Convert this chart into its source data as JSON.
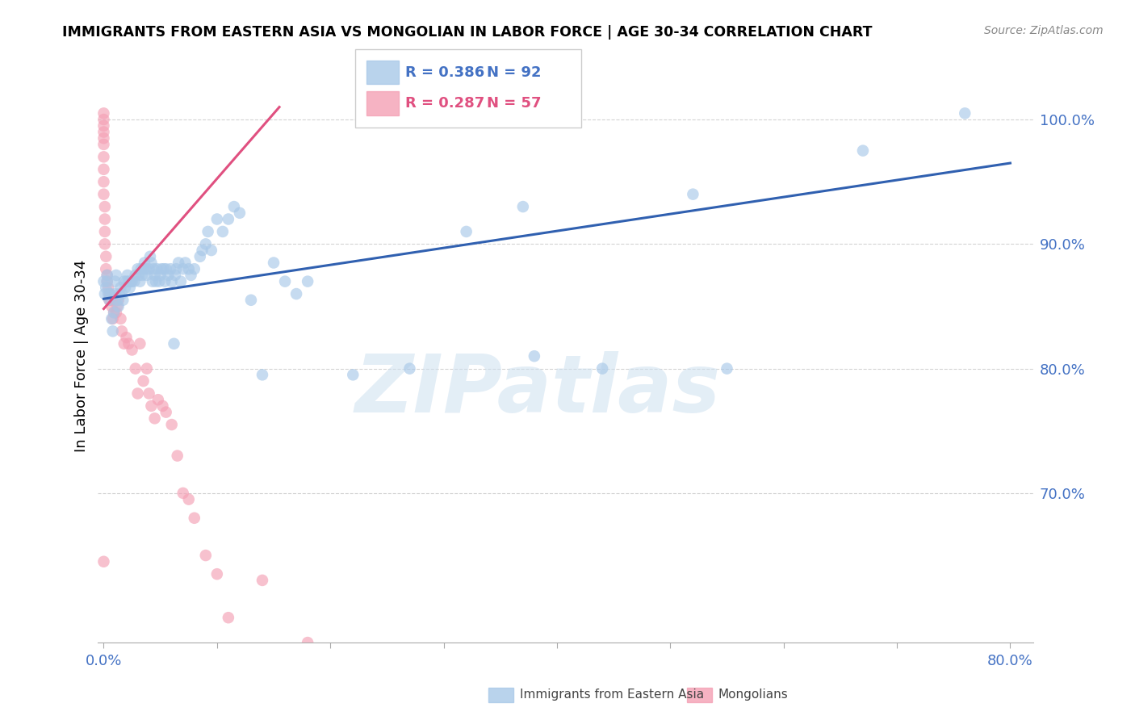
{
  "title": "IMMIGRANTS FROM EASTERN ASIA VS MONGOLIAN IN LABOR FORCE | AGE 30-34 CORRELATION CHART",
  "source": "Source: ZipAtlas.com",
  "ylabel": "In Labor Force | Age 30-34",
  "watermark": "ZIPatlas",
  "xlim": [
    -0.005,
    0.82
  ],
  "ylim": [
    0.58,
    1.04
  ],
  "yticks": [
    0.7,
    0.8,
    0.9,
    1.0
  ],
  "ytick_labels": [
    "70.0%",
    "80.0%",
    "90.0%",
    "100.0%"
  ],
  "xticks": [
    0.0,
    0.1,
    0.2,
    0.3,
    0.4,
    0.5,
    0.6,
    0.7,
    0.8
  ],
  "xtick_labels": [
    "0.0%",
    "",
    "",
    "",
    "",
    "",
    "",
    "",
    "80.0%"
  ],
  "blue_R": 0.386,
  "blue_N": 92,
  "pink_R": 0.287,
  "pink_N": 57,
  "blue_color": "#a8c8e8",
  "pink_color": "#f4a0b5",
  "blue_line_color": "#3060b0",
  "pink_line_color": "#e05080",
  "axis_color": "#4472c4",
  "grid_color": "#c8c8c8",
  "blue_scatter_x": [
    0.0,
    0.001,
    0.002,
    0.003,
    0.003,
    0.004,
    0.005,
    0.006,
    0.007,
    0.008,
    0.009,
    0.01,
    0.01,
    0.011,
    0.012,
    0.013,
    0.014,
    0.015,
    0.016,
    0.017,
    0.018,
    0.019,
    0.02,
    0.021,
    0.022,
    0.023,
    0.024,
    0.025,
    0.027,
    0.028,
    0.03,
    0.031,
    0.032,
    0.033,
    0.034,
    0.035,
    0.036,
    0.037,
    0.038,
    0.04,
    0.041,
    0.042,
    0.043,
    0.044,
    0.045,
    0.046,
    0.047,
    0.049,
    0.05,
    0.051,
    0.053,
    0.054,
    0.055,
    0.057,
    0.059,
    0.06,
    0.062,
    0.063,
    0.064,
    0.066,
    0.068,
    0.07,
    0.072,
    0.075,
    0.077,
    0.08,
    0.085,
    0.087,
    0.09,
    0.092,
    0.095,
    0.1,
    0.105,
    0.11,
    0.115,
    0.12,
    0.13,
    0.14,
    0.15,
    0.16,
    0.17,
    0.18,
    0.22,
    0.27,
    0.32,
    0.37,
    0.44,
    0.52,
    0.67,
    0.76,
    0.38,
    0.55
  ],
  "blue_scatter_y": [
    0.87,
    0.86,
    0.865,
    0.875,
    0.87,
    0.86,
    0.855,
    0.86,
    0.84,
    0.83,
    0.845,
    0.87,
    0.86,
    0.875,
    0.855,
    0.85,
    0.86,
    0.865,
    0.86,
    0.855,
    0.87,
    0.865,
    0.87,
    0.875,
    0.87,
    0.865,
    0.87,
    0.87,
    0.87,
    0.875,
    0.88,
    0.875,
    0.87,
    0.88,
    0.875,
    0.88,
    0.885,
    0.88,
    0.875,
    0.88,
    0.89,
    0.885,
    0.87,
    0.88,
    0.875,
    0.87,
    0.88,
    0.87,
    0.875,
    0.88,
    0.88,
    0.87,
    0.88,
    0.875,
    0.88,
    0.87,
    0.82,
    0.875,
    0.88,
    0.885,
    0.87,
    0.88,
    0.885,
    0.88,
    0.875,
    0.88,
    0.89,
    0.895,
    0.9,
    0.91,
    0.895,
    0.92,
    0.91,
    0.92,
    0.93,
    0.925,
    0.855,
    0.795,
    0.885,
    0.87,
    0.86,
    0.87,
    0.795,
    0.8,
    0.91,
    0.93,
    0.8,
    0.94,
    0.975,
    1.005,
    0.81,
    0.8
  ],
  "pink_scatter_x": [
    0.0,
    0.0,
    0.0,
    0.0,
    0.0,
    0.0,
    0.0,
    0.0,
    0.0,
    0.0,
    0.001,
    0.001,
    0.001,
    0.001,
    0.002,
    0.002,
    0.003,
    0.003,
    0.004,
    0.005,
    0.005,
    0.006,
    0.007,
    0.008,
    0.009,
    0.01,
    0.011,
    0.012,
    0.013,
    0.015,
    0.016,
    0.018,
    0.02,
    0.022,
    0.025,
    0.028,
    0.03,
    0.032,
    0.035,
    0.038,
    0.04,
    0.042,
    0.045,
    0.048,
    0.052,
    0.055,
    0.06,
    0.065,
    0.07,
    0.075,
    0.08,
    0.09,
    0.1,
    0.11,
    0.14,
    0.18,
    0.0
  ],
  "pink_scatter_y": [
    1.005,
    1.0,
    0.995,
    0.99,
    0.985,
    0.98,
    0.97,
    0.96,
    0.95,
    0.94,
    0.93,
    0.92,
    0.91,
    0.9,
    0.89,
    0.88,
    0.875,
    0.87,
    0.865,
    0.86,
    0.855,
    0.855,
    0.85,
    0.84,
    0.845,
    0.855,
    0.845,
    0.85,
    0.855,
    0.84,
    0.83,
    0.82,
    0.825,
    0.82,
    0.815,
    0.8,
    0.78,
    0.82,
    0.79,
    0.8,
    0.78,
    0.77,
    0.76,
    0.775,
    0.77,
    0.765,
    0.755,
    0.73,
    0.7,
    0.695,
    0.68,
    0.65,
    0.635,
    0.6,
    0.63,
    0.58,
    0.645
  ],
  "blue_line_x": [
    0.0,
    0.8
  ],
  "blue_line_y": [
    0.856,
    0.965
  ],
  "pink_line_x": [
    0.0,
    0.155
  ],
  "pink_line_y": [
    0.848,
    1.01
  ],
  "legend_blue_text_color": "#4472c4",
  "legend_pink_text_color": "#e05080",
  "legend_label_blue": "Immigrants from Eastern Asia",
  "legend_label_pink": "Mongolians"
}
